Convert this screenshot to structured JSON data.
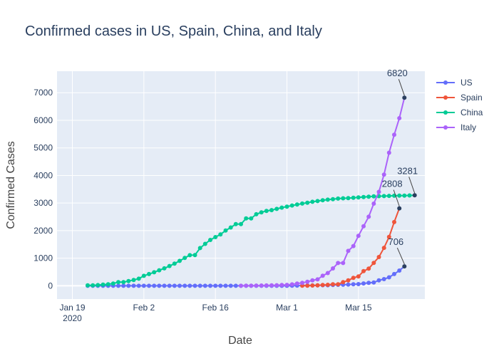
{
  "chart_data": {
    "type": "line",
    "title": "Confirmed cases in US, Spain, China, and Italy",
    "xlabel": "Date",
    "ylabel": "Confirmed Cases",
    "x_start": "2020-01-22",
    "x_ticks": [
      {
        "date": "2020-01-19",
        "label": "Jan 19",
        "sublabel": "2020"
      },
      {
        "date": "2020-02-02",
        "label": "Feb 2",
        "sublabel": ""
      },
      {
        "date": "2020-02-16",
        "label": "Feb 16",
        "sublabel": ""
      },
      {
        "date": "2020-03-01",
        "label": "Mar 1",
        "sublabel": ""
      },
      {
        "date": "2020-03-15",
        "label": "Mar 15",
        "sublabel": ""
      }
    ],
    "xlim": [
      "2020-01-16",
      "2020-03-28"
    ],
    "ylim": [
      -480,
      7780
    ],
    "y_ticks": [
      0,
      1000,
      2000,
      3000,
      4000,
      5000,
      6000,
      7000
    ],
    "legend_position": "top-right outside",
    "grid": true,
    "colors": {
      "background": "#e5ecf6",
      "grid": "#ffffff",
      "text": "#2a3f5f"
    },
    "series": [
      {
        "name": "US",
        "color": "#636efa",
        "start": "2020-01-22",
        "values": [
          0,
          0,
          0,
          0,
          0,
          0,
          0,
          0,
          0,
          0,
          0,
          0,
          0,
          0,
          0,
          0,
          0,
          0,
          0,
          0,
          0,
          0,
          0,
          0,
          0,
          0,
          0,
          0,
          0,
          0,
          0,
          0,
          0,
          0,
          0,
          0,
          0,
          0,
          1,
          1,
          6,
          7,
          11,
          12,
          14,
          17,
          21,
          22,
          28,
          36,
          40,
          47,
          54,
          63,
          85,
          108,
          118,
          200,
          244,
          307,
          427,
          552,
          706
        ]
      },
      {
        "name": "Spain",
        "color": "#ef553b",
        "start": "2020-03-04",
        "values": [
          3,
          5,
          10,
          17,
          28,
          35,
          54,
          55,
          133,
          195,
          289,
          342,
          533,
          623,
          830,
          1043,
          1375,
          1772,
          2311,
          2808
        ]
      },
      {
        "name": "China",
        "color": "#00cc96",
        "start": "2020-01-22",
        "values": [
          17,
          18,
          26,
          42,
          56,
          82,
          131,
          133,
          171,
          213,
          259,
          361,
          425,
          490,
          562,
          632,
          717,
          804,
          904,
          1011,
          1111,
          1116,
          1368,
          1520,
          1662,
          1765,
          1863,
          2002,
          2114,
          2236,
          2236,
          2441,
          2443,
          2593,
          2663,
          2715,
          2744,
          2788,
          2835,
          2870,
          2912,
          2945,
          2981,
          3013,
          3045,
          3073,
          3099,
          3123,
          3140,
          3162,
          3173,
          3180,
          3194,
          3204,
          3218,
          3231,
          3242,
          3250,
          3253,
          3261,
          3265,
          3267,
          3270,
          3276,
          3281
        ]
      },
      {
        "name": "Italy",
        "color": "#ab63fa",
        "start": "2020-02-21",
        "values": [
          1,
          2,
          3,
          7,
          10,
          12,
          17,
          21,
          29,
          34,
          52,
          79,
          107,
          148,
          197,
          233,
          366,
          463,
          631,
          827,
          827,
          1266,
          1441,
          1809,
          2158,
          2503,
          2978,
          3405,
          4032,
          4825,
          5476,
          6077,
          6820
        ]
      }
    ],
    "annotations": [
      {
        "text": "6820",
        "series": "Italy"
      },
      {
        "text": "3281",
        "series": "China"
      },
      {
        "text": "2808",
        "series": "Spain"
      },
      {
        "text": "706",
        "series": "US"
      }
    ]
  }
}
